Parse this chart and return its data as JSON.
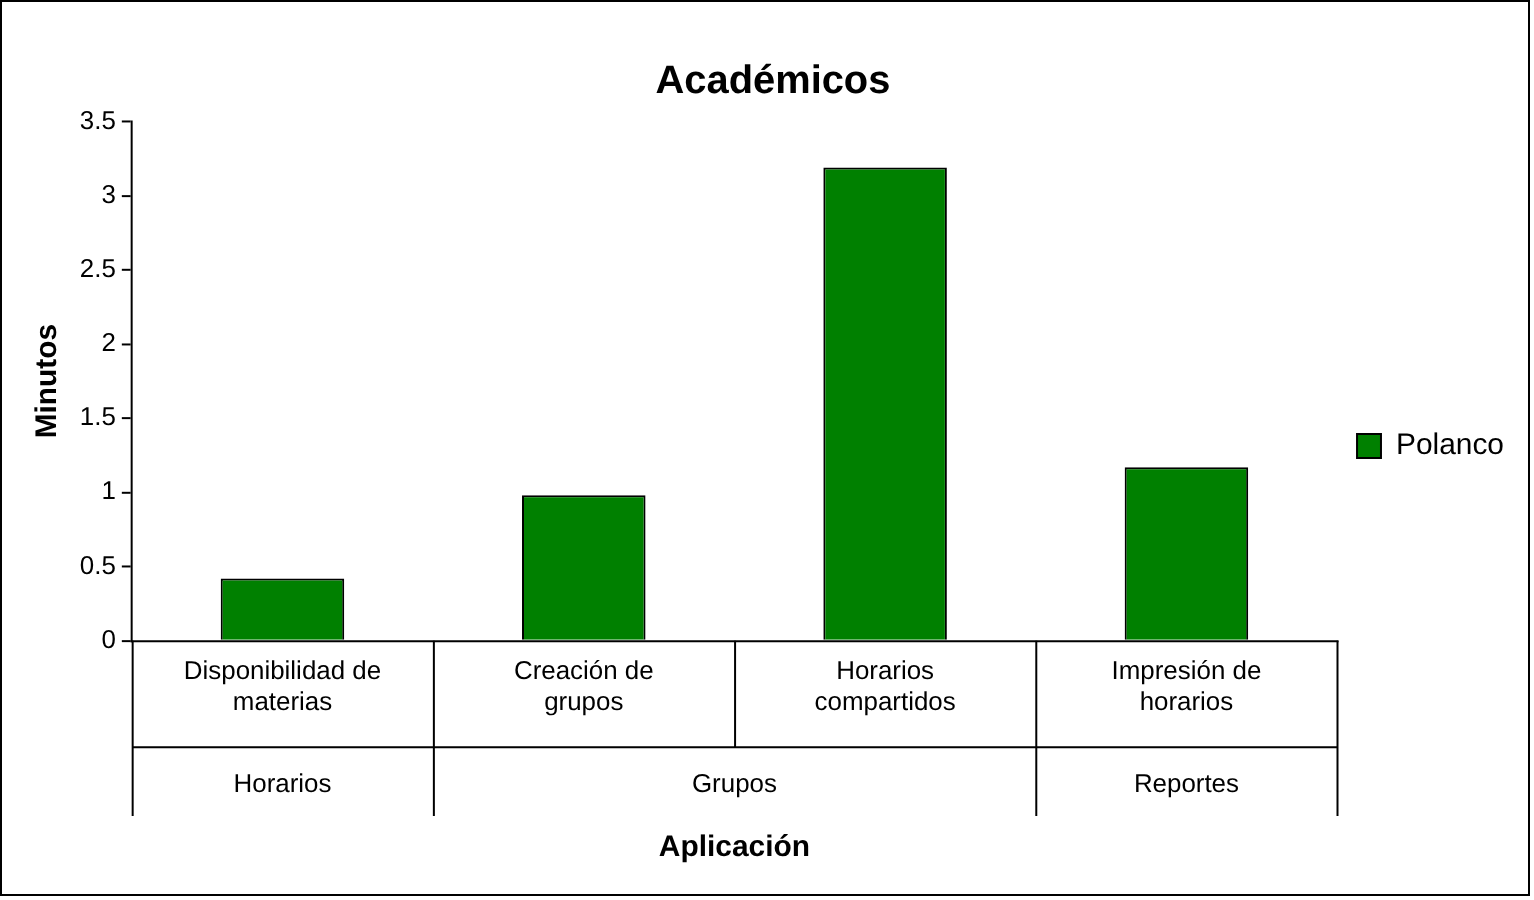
{
  "chart_data": {
    "type": "bar",
    "title": "Académicos",
    "xlabel": "Aplicación",
    "ylabel": "Minutos",
    "categories": [
      "Disponibilidad de materias",
      "Creación de grupos",
      "Horarios compartidos",
      "Impresión de horarios"
    ],
    "series": [
      {
        "name": "Polanco",
        "color": "#008000",
        "values": [
          0.42,
          0.98,
          3.19,
          1.17
        ]
      }
    ],
    "annotations": [
      "Horarios",
      "Grupos",
      "Reportes"
    ],
    "ylim": [
      0,
      3.5
    ],
    "yticks": [
      0,
      0.5,
      1,
      1.5,
      2,
      2.5,
      3,
      3.5
    ],
    "grid": false,
    "legend": "right"
  }
}
